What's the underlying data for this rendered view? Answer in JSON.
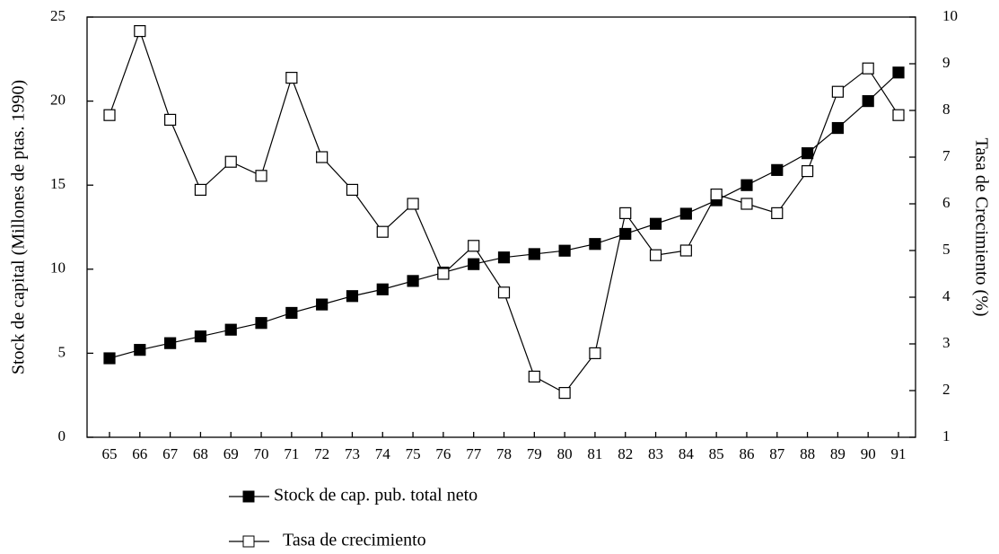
{
  "chart_data": {
    "type": "line",
    "y_label": "Stock de capital (Millones de ptas. 1990)",
    "y2_label": "Tasa de Crecimiento (%)",
    "categories": [
      "65",
      "66",
      "67",
      "68",
      "69",
      "70",
      "71",
      "72",
      "73",
      "74",
      "75",
      "76",
      "77",
      "78",
      "79",
      "80",
      "81",
      "82",
      "83",
      "84",
      "85",
      "86",
      "87",
      "88",
      "89",
      "90",
      "91"
    ],
    "ylim": [
      0,
      25
    ],
    "yticks": [
      0,
      5,
      10,
      15,
      20,
      25
    ],
    "y2lim": [
      1,
      10
    ],
    "y2ticks": [
      1,
      2,
      3,
      4,
      5,
      6,
      7,
      8,
      9,
      10
    ],
    "series": [
      {
        "name": "Stock de cap. pub. total neto",
        "color": "#000000",
        "marker": "filled-square",
        "values": [
          4.7,
          5.2,
          5.6,
          6.0,
          6.4,
          6.8,
          7.4,
          7.9,
          8.4,
          8.8,
          9.3,
          9.8,
          10.3,
          10.7,
          10.9,
          11.1,
          11.5,
          12.1,
          12.7,
          13.3,
          14.1,
          15.0,
          15.9,
          16.9,
          18.4,
          20.0,
          21.7
        ]
      },
      {
        "name": "Tasa de crecimiento",
        "color": "#000000",
        "marker": "open-square",
        "axis": "y2",
        "values": [
          7.9,
          9.7,
          7.8,
          6.3,
          6.9,
          6.6,
          8.7,
          7.0,
          6.3,
          5.4,
          6.0,
          4.5,
          5.1,
          4.1,
          2.3,
          1.95,
          2.8,
          5.8,
          4.9,
          5.0,
          6.2,
          6.0,
          5.8,
          6.7,
          8.4,
          8.9,
          7.9
        ]
      }
    ]
  }
}
